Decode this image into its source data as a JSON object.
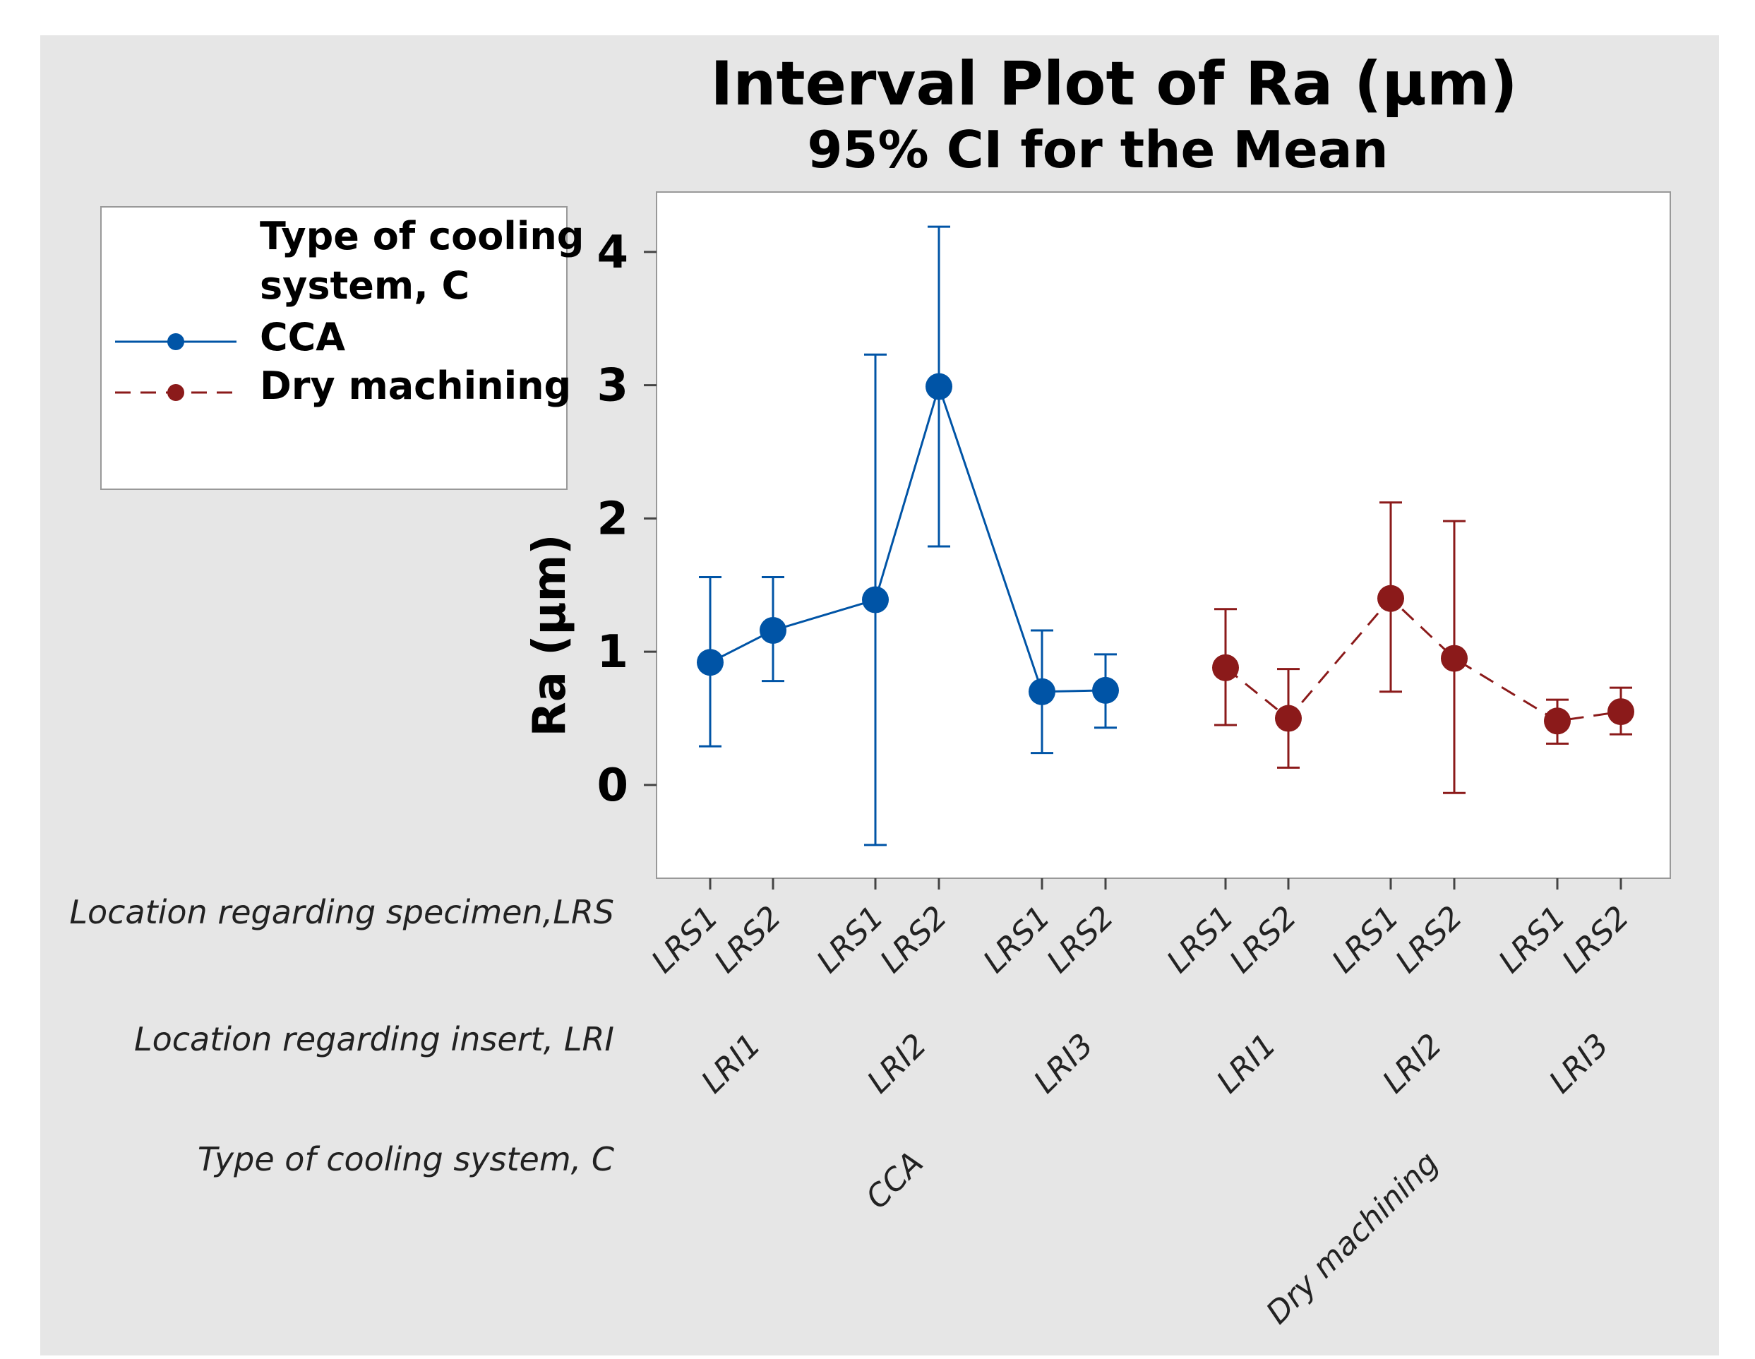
{
  "chart_data": {
    "type": "interval",
    "title": "Interval Plot of Ra (µm)",
    "subtitle": "95% CI for the Mean",
    "ylabel": "Ra (µm)",
    "ylim": [
      -0.7,
      4.45
    ],
    "yticks": [
      0,
      1,
      2,
      3,
      4
    ],
    "grid": false,
    "legend": {
      "placement": "left",
      "title": "Type of cooling system, C",
      "title_lines": [
        "Type of cooling",
        "system, C"
      ],
      "entries": [
        "CCA",
        "Dry machining"
      ]
    },
    "row_labels": {
      "lrs": "Location regarding specimen,LRS",
      "lri": "Location regarding insert, LRI",
      "c": "Type of cooling system, C"
    },
    "lri_labels": [
      "LRI1",
      "LRI2",
      "LRI3",
      "LRI1",
      "LRI2",
      "LRI3"
    ],
    "lri_display": [
      "LRI1",
      "LRI2",
      "LRI3",
      "LRI1",
      "LRI2",
      "LRI3"
    ],
    "c_labels": [
      "CCA",
      "Dry machining"
    ],
    "x_labels": [
      "LRS1",
      "LRS2",
      "LRS1",
      "LRS2",
      "LRS1",
      "LRS2",
      "LRS1",
      "LRS2",
      "LRS1",
      "LRS2",
      "LRS1",
      "LRS2"
    ],
    "series": [
      {
        "name": "CCA",
        "color": "#0054A6",
        "line": "solid",
        "points": [
          {
            "lri": "LRI1",
            "lrs": "LRS1",
            "mean": 0.92,
            "lower": 0.29,
            "upper": 1.56
          },
          {
            "lri": "LRI1",
            "lrs": "LRS2",
            "mean": 1.16,
            "lower": 0.78,
            "upper": 1.56
          },
          {
            "lri": "LRI2",
            "lrs": "LRS1",
            "mean": 1.39,
            "lower": -0.45,
            "upper": 3.23
          },
          {
            "lri": "LRI2",
            "lrs": "LRS2",
            "mean": 2.99,
            "lower": 1.79,
            "upper": 4.19
          },
          {
            "lri": "LRI3",
            "lrs": "LRS1",
            "mean": 0.7,
            "lower": 0.24,
            "upper": 1.16
          },
          {
            "lri": "LRI3",
            "lrs": "LRS2",
            "mean": 0.71,
            "lower": 0.43,
            "upper": 0.98
          }
        ]
      },
      {
        "name": "Dry machining",
        "color": "#8B1A1A",
        "line": "dashed",
        "points": [
          {
            "lri": "LRI1",
            "lrs": "LRS1",
            "mean": 0.88,
            "lower": 0.45,
            "upper": 1.32
          },
          {
            "lri": "LRI1",
            "lrs": "LRS2",
            "mean": 0.5,
            "lower": 0.13,
            "upper": 0.87
          },
          {
            "lri": "LRI2",
            "lrs": "LRS1",
            "mean": 1.4,
            "lower": 0.7,
            "upper": 2.12
          },
          {
            "lri": "LRI2",
            "lrs": "LRS2",
            "mean": 0.95,
            "lower": -0.06,
            "upper": 1.98
          },
          {
            "lri": "LRI3",
            "lrs": "LRS1",
            "mean": 0.48,
            "lower": 0.31,
            "upper": 0.64
          },
          {
            "lri": "LRI3",
            "lrs": "LRS2",
            "mean": 0.55,
            "lower": 0.38,
            "upper": 0.73
          }
        ]
      }
    ]
  }
}
